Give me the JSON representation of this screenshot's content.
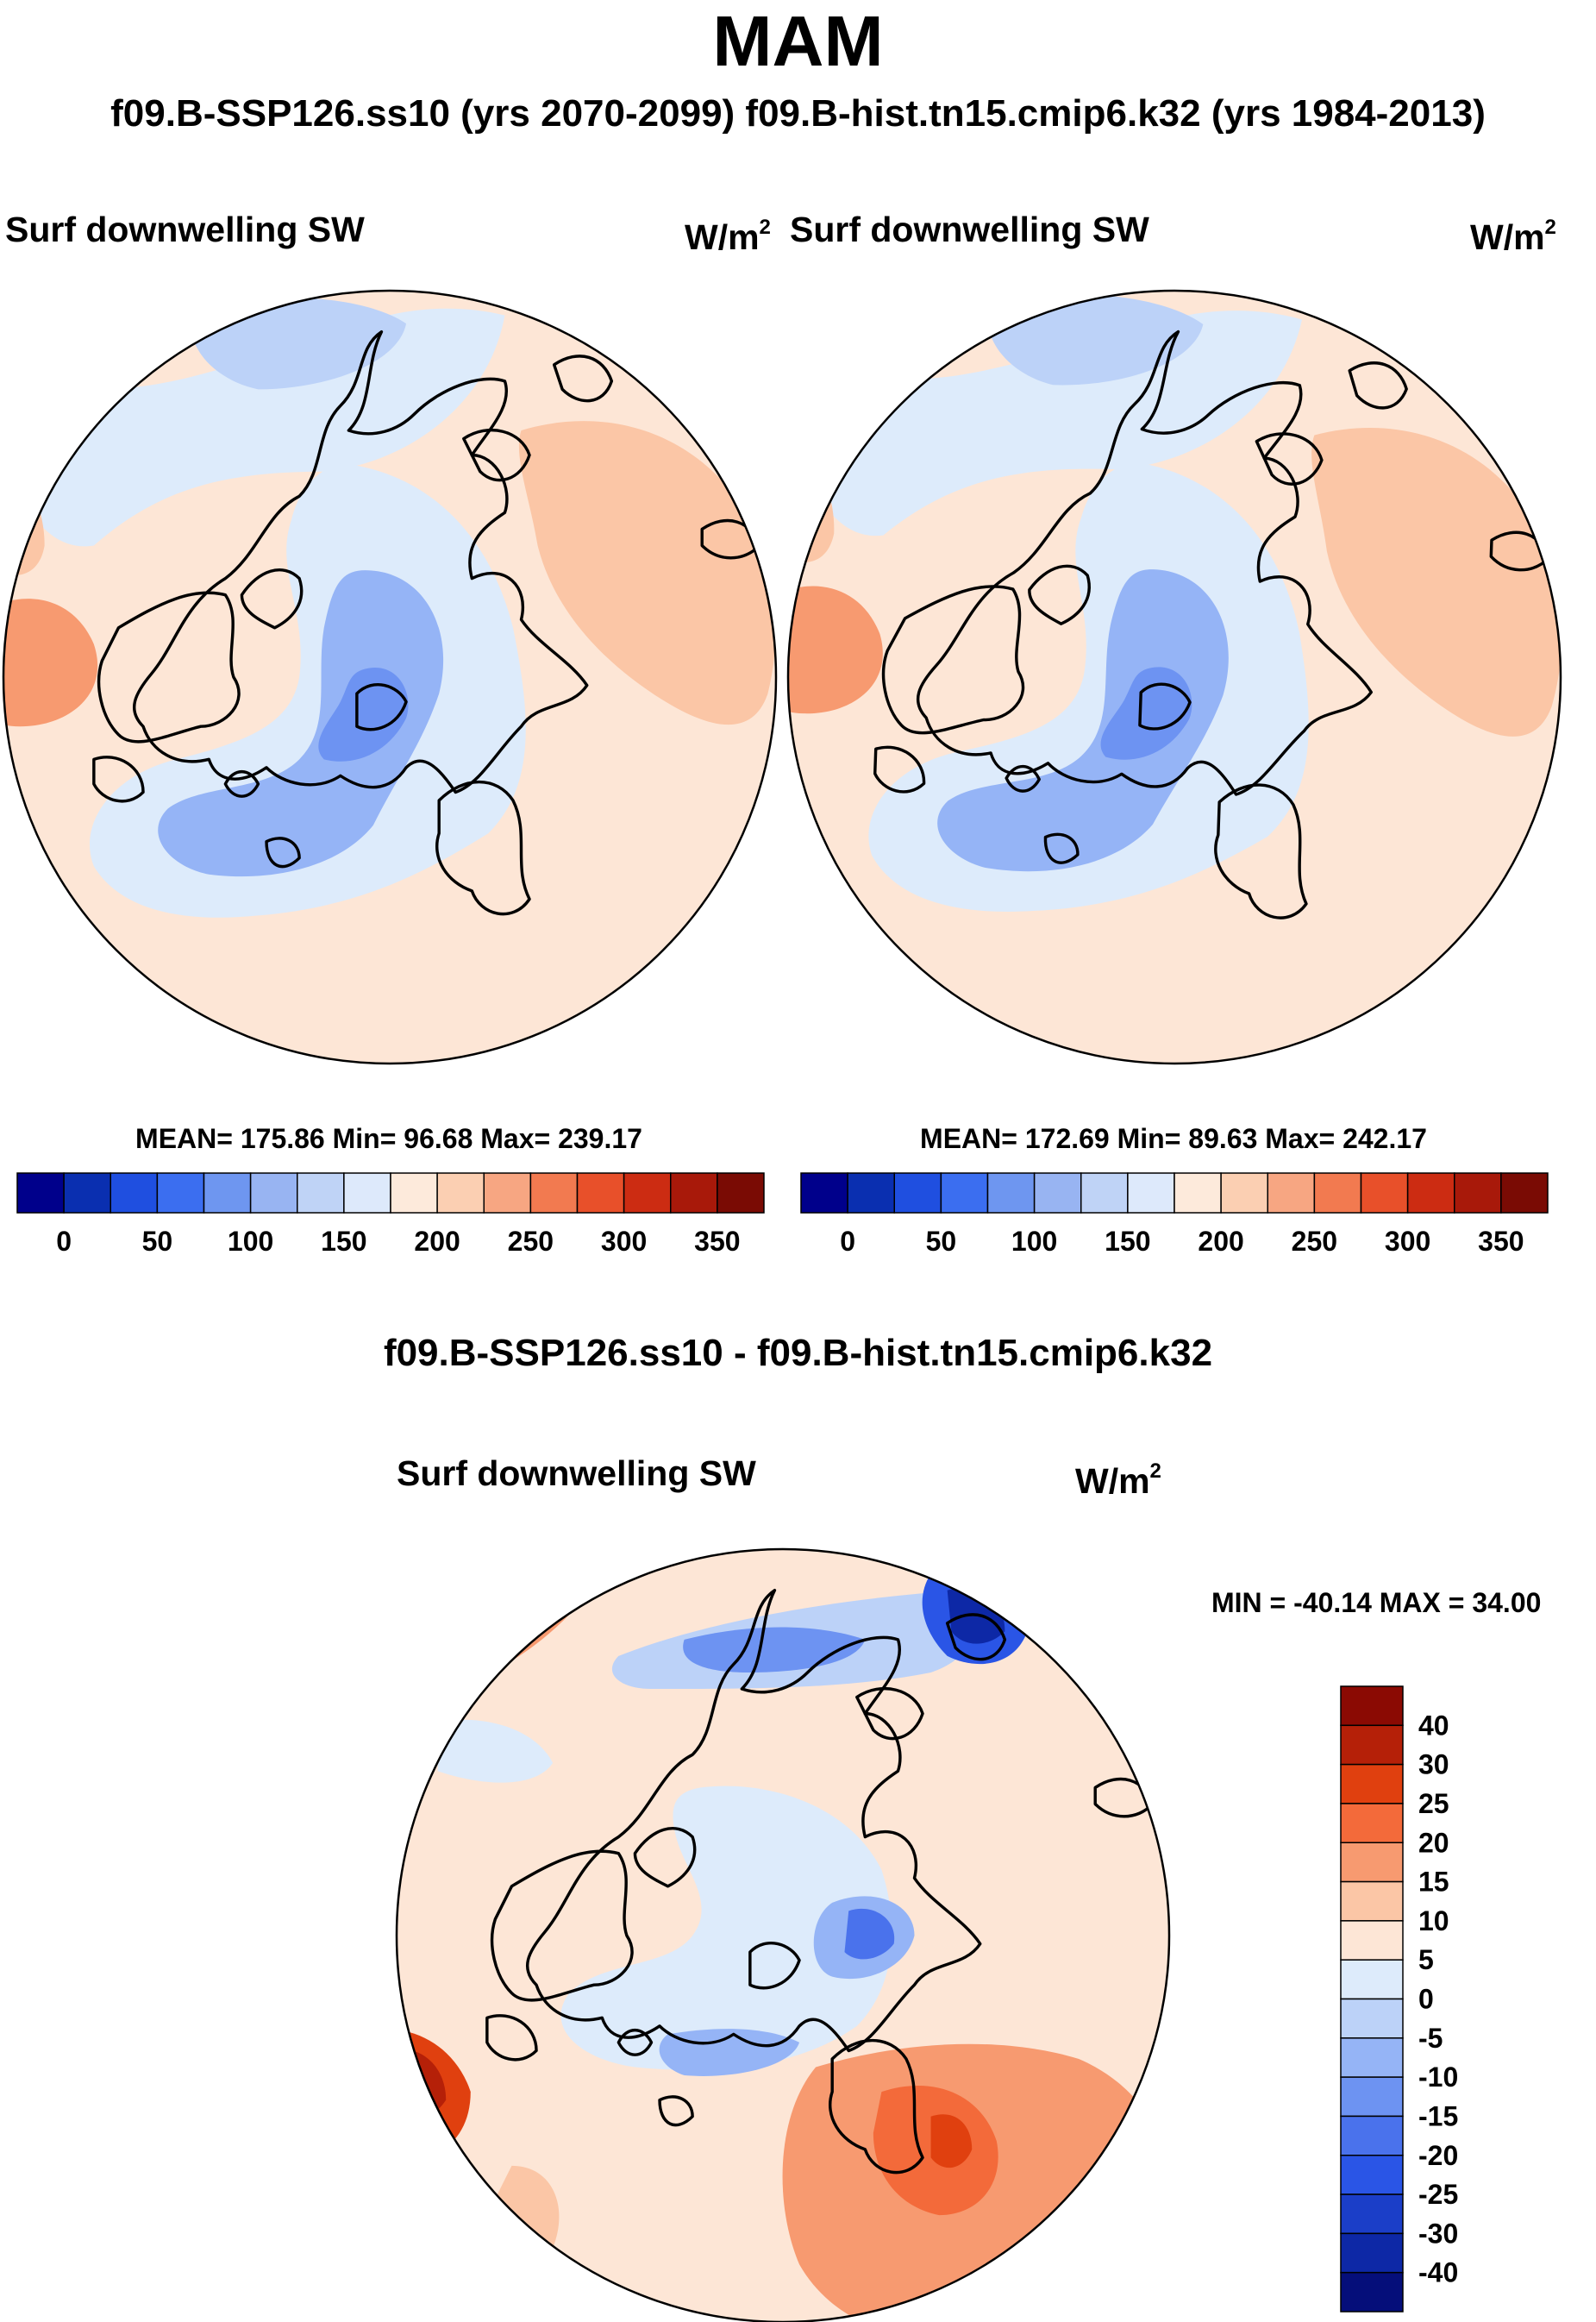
{
  "figure": {
    "title": "MAM",
    "subtitle": "f09.B-SSP126.ss10 (yrs 2070-2099)  f09.B-hist.tn15.cmip6.k32 (yrs 1984-2013)",
    "diff_title": "f09.B-SSP126.ss10 - f09.B-hist.tn15.cmip6.k32"
  },
  "panels": [
    {
      "variable": "Surf downwelling SW",
      "units": "W/m",
      "units_exp": "2",
      "stats": "MEAN= 175.86  Min=  96.68  Max= 239.17"
    },
    {
      "variable": "Surf downwelling SW",
      "units": "W/m",
      "units_exp": "2",
      "stats": "MEAN= 172.69  Min=  89.63  Max= 242.17"
    },
    {
      "variable": "Surf downwelling SW",
      "units": "W/m",
      "units_exp": "2",
      "stats": "MIN = -40.14 MAX =  34.00"
    }
  ],
  "chart_data": [
    {
      "type": "heatmap",
      "projection": "north polar stereographic",
      "title": "Surf downwelling SW",
      "units": "W/m2",
      "period": "f09.B-SSP126.ss10 (yrs 2070-2099)",
      "mean": 175.86,
      "min": 96.68,
      "max": 239.17,
      "colorbar_ticks": [
        "0",
        "50",
        "100",
        "150",
        "200",
        "250",
        "300",
        "350"
      ],
      "levels": [
        0,
        25,
        50,
        75,
        100,
        125,
        150,
        175,
        200,
        225,
        250,
        275,
        300,
        325,
        350
      ],
      "colors": [
        "#00008b",
        "#0a2fb0",
        "#1f4fe0",
        "#3b6ef0",
        "#6e96f0",
        "#98b4f2",
        "#bfd3f6",
        "#dde9fb",
        "#fdeadb",
        "#fbcfb2",
        "#f7a682",
        "#f27a50",
        "#e8502a",
        "#cc2c12",
        "#a8190a",
        "#7a0b04"
      ]
    },
    {
      "type": "heatmap",
      "projection": "north polar stereographic",
      "title": "Surf downwelling SW",
      "units": "W/m2",
      "period": "f09.B-hist.tn15.cmip6.k32 (yrs 1984-2013)",
      "mean": 172.69,
      "min": 89.63,
      "max": 242.17,
      "colorbar_ticks": [
        "0",
        "50",
        "100",
        "150",
        "200",
        "250",
        "300",
        "350"
      ],
      "levels": [
        0,
        25,
        50,
        75,
        100,
        125,
        150,
        175,
        200,
        225,
        250,
        275,
        300,
        325,
        350
      ],
      "colors": [
        "#00008b",
        "#0a2fb0",
        "#1f4fe0",
        "#3b6ef0",
        "#6e96f0",
        "#98b4f2",
        "#bfd3f6",
        "#dde9fb",
        "#fdeadb",
        "#fbcfb2",
        "#f7a682",
        "#f27a50",
        "#e8502a",
        "#cc2c12",
        "#a8190a",
        "#7a0b04"
      ]
    },
    {
      "type": "heatmap",
      "projection": "north polar stereographic",
      "title": "Surf downwelling SW",
      "units": "W/m2",
      "period": "f09.B-SSP126.ss10 - f09.B-hist.tn15.cmip6.k32",
      "min": -40.14,
      "max": 34.0,
      "colorbar_ticks": [
        "40",
        "30",
        "25",
        "20",
        "15",
        "10",
        "5",
        "0",
        "-5",
        "-10",
        "-15",
        "-20",
        "-25",
        "-30",
        "-40"
      ],
      "levels": [
        40,
        30,
        25,
        20,
        15,
        10,
        5,
        0,
        -5,
        -10,
        -15,
        -20,
        -25,
        -30,
        -40
      ],
      "colors": [
        "#8b0a03",
        "#b52008",
        "#e0400f",
        "#f36a3a",
        "#f79a70",
        "#fbc6a6",
        "#fde6d6",
        "#ddebfb",
        "#bcd2f8",
        "#95b4f6",
        "#6d93f2",
        "#4a72ec",
        "#2a55e6",
        "#1b3ec8",
        "#0d28a6",
        "#050e7a"
      ]
    }
  ],
  "colors": {
    "land_outline": "#000000",
    "map_border": "#000000"
  }
}
